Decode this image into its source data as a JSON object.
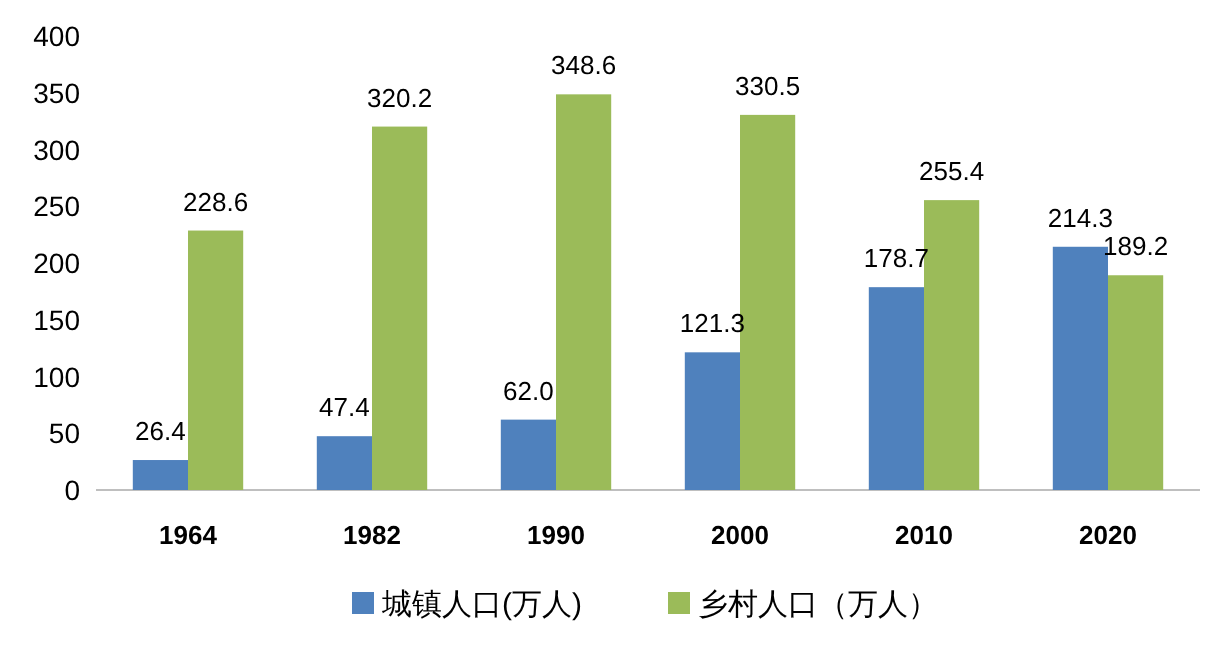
{
  "chart_data": {
    "type": "bar",
    "categories": [
      "1964",
      "1982",
      "1990",
      "2000",
      "2010",
      "2020"
    ],
    "series": [
      {
        "name": "城镇人口(万人)",
        "color": "#4f81bd",
        "values": [
          26.4,
          47.4,
          62.0,
          121.3,
          178.7,
          214.3
        ],
        "value_labels": [
          "26.4",
          "47.4",
          "62.0",
          "121.3",
          "178.7",
          "214.3"
        ]
      },
      {
        "name": "乡村人口（万人）",
        "color": "#9bbb59",
        "values": [
          228.6,
          320.2,
          348.6,
          330.5,
          255.4,
          189.2
        ],
        "value_labels": [
          "228.6",
          "320.2",
          "348.6",
          "330.5",
          "255.4",
          "189.2"
        ]
      }
    ],
    "ylim": [
      0,
      400
    ],
    "yticks": [
      0,
      50,
      100,
      150,
      200,
      250,
      300,
      350,
      400
    ],
    "grid": false,
    "legend": "bottom"
  }
}
